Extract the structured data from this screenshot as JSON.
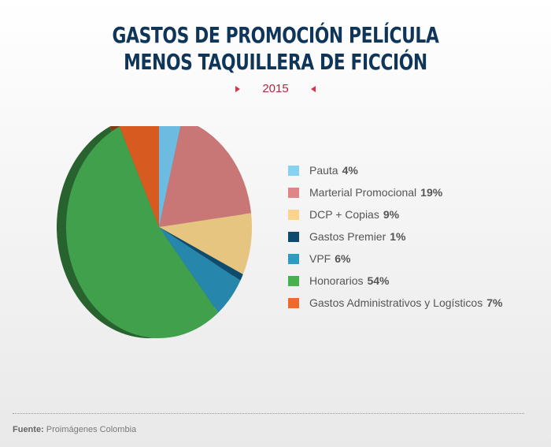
{
  "header": {
    "title_line1": "GASTOS DE PROMOCIÓN PELÍCULA",
    "title_line2": "MENOS TAQUILLERA DE FICCIÓN",
    "year": "2015"
  },
  "chart_data": {
    "type": "pie",
    "title": "GASTOS DE PROMOCIÓN PELÍCULA MENOS TAQUILLERA DE FICCIÓN",
    "subtitle": "2015",
    "legend_position": "right",
    "slices": [
      {
        "label": "Pauta",
        "pct_label": "4%",
        "value": 4,
        "color": "#87d2ef",
        "pie_color": "#6dbbe0"
      },
      {
        "label": "Marterial Promocional",
        "pct_label": "19%",
        "value": 19,
        "color": "#e08585",
        "pie_color": "#c97676"
      },
      {
        "label": "DCP + Copias",
        "pct_label": "9%",
        "value": 9,
        "color": "#fbd38e",
        "pie_color": "#e6c581"
      },
      {
        "label": "Gastos Premier",
        "pct_label": "1%",
        "value": 1,
        "color": "#0e4b6d",
        "pie_color": "#0e4b6d"
      },
      {
        "label": "VPF",
        "pct_label": "6%",
        "value": 6,
        "color": "#2e9bc0",
        "pie_color": "#2686ac"
      },
      {
        "label": "Honorarios",
        "pct_label": "54%",
        "value": 54,
        "color": "#49b04e",
        "pie_color": "#40a04c"
      },
      {
        "label": "Gastos Administrativos y Logísticos",
        "pct_label": "7%",
        "value": 7,
        "color": "#ee6a2b",
        "pie_color": "#d75a20"
      }
    ]
  },
  "footer": {
    "source_key": "Fuente:",
    "source_value": "Proimágenes Colombia"
  }
}
